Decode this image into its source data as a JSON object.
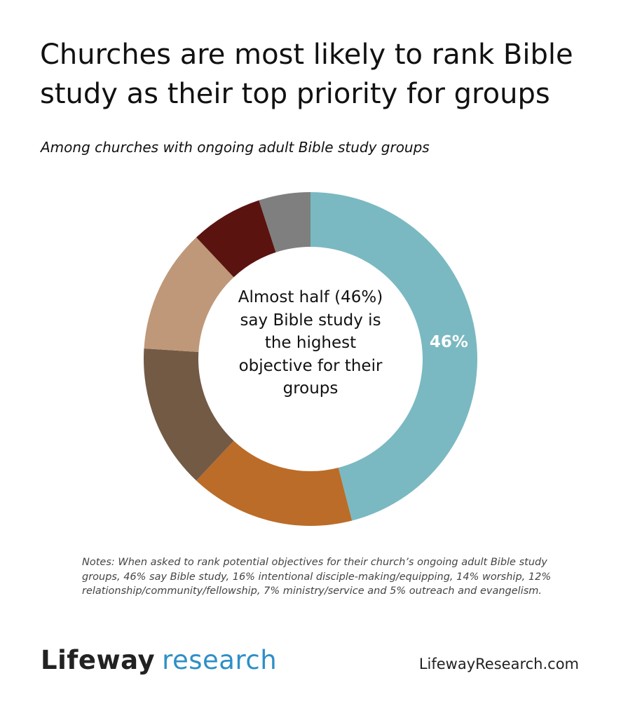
{
  "title": "Churches are most likely to rank Bible study as their top priority for groups",
  "subtitle": "Among churches with ongoing adult Bible study groups",
  "center_text": "Almost half (46%) say Bible study is the highest objective for their groups",
  "notes": "Notes: When asked to rank potential objectives for their church’s ongoing adult Bible study groups, 46% say Bible study, 16% intentional disciple-making/equipping, 14% worship, 12% relationship/community/fellowship, 7% ministry/service and 5% outreach and evangelism.",
  "logo": {
    "part1": "Lifeway",
    "part2": "research"
  },
  "url": "LifewayResearch.com",
  "colors": {
    "bible_study": "#7ab9c1",
    "disciple_making": "#bb6c28",
    "worship": "#735a45",
    "relationship": "#be9878",
    "ministry": "#5b1310",
    "outreach": "#7f7f7f",
    "logo_blue": "#2e8fc7"
  },
  "chart_data": {
    "type": "pie",
    "donut": true,
    "title": "Churches are most likely to rank Bible study as their top priority for groups",
    "subtitle": "Among churches with ongoing adult Bible study groups",
    "categories": [
      "Bible study",
      "intentional disciple-making/equipping",
      "worship",
      "relationship/community/fellowship",
      "ministry/service",
      "outreach and evangelism"
    ],
    "values": [
      46,
      16,
      14,
      12,
      7,
      5
    ],
    "colors": [
      "#7ab9c1",
      "#bb6c28",
      "#735a45",
      "#be9878",
      "#5b1310",
      "#7f7f7f"
    ],
    "data_labels": [
      "46%",
      "",
      "",
      "",
      "",
      ""
    ],
    "start": "12 o'clock, clockwise",
    "legend": "none"
  }
}
